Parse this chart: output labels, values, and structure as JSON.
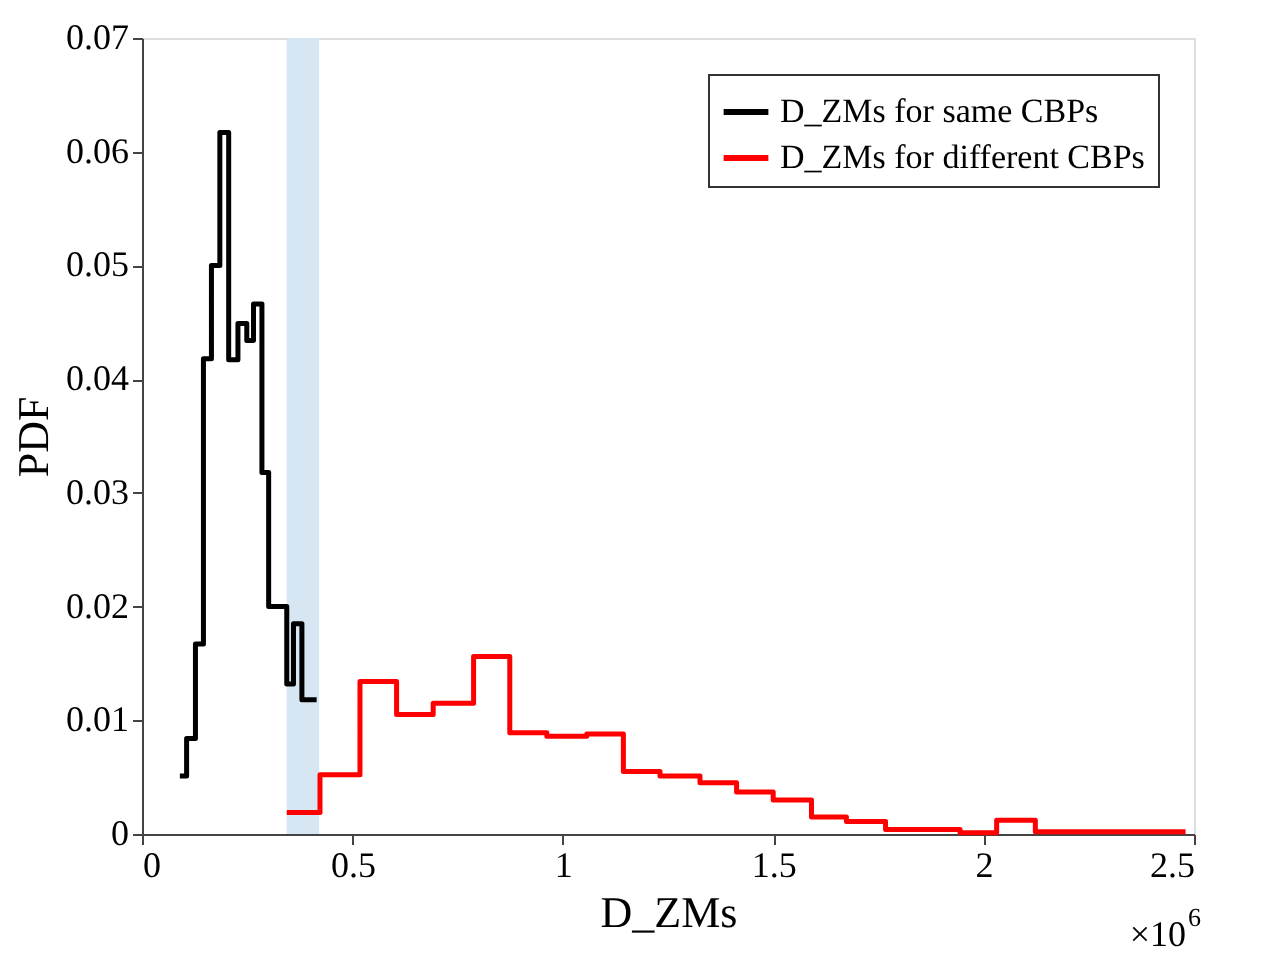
{
  "chart_data": {
    "type": "step",
    "xlabel": "D_ZMs",
    "ylabel": "PDF",
    "xlim": [
      0,
      2.5
    ],
    "xticks": [
      0,
      0.5,
      1,
      1.5,
      2,
      2.5
    ],
    "ylim": [
      0,
      0.07
    ],
    "yticks": [
      0,
      0.01,
      0.02,
      0.03,
      0.04,
      0.05,
      0.06,
      0.07
    ],
    "grid": false,
    "legend": "top right",
    "line_style": "solid",
    "marker": "none",
    "annotations": [
      "×10$^{6}$"
    ],
    "bands": [
      {
        "axis": "x",
        "from": 0.344,
        "to": 0.421,
        "color": "#d6e6f2"
      }
    ],
    "series": [
      {
        "name": "D_ZMs for same CBPs",
        "color": "#000000",
        "x": [
          0.09,
          0.106,
          0.127,
          0.146,
          0.165,
          0.185,
          0.206,
          0.228,
          0.249,
          0.265,
          0.285,
          0.301,
          0.344,
          0.36,
          0.38,
          0.415
        ],
        "values": [
          0.0051,
          0.0084,
          0.0167,
          0.0418,
          0.05,
          0.0617,
          0.0417,
          0.0449,
          0.0434,
          0.0466,
          0.0318,
          0.02,
          0.0132,
          0.0185,
          0.0118,
          0.0118
        ]
      },
      {
        "name": "D_ZMs for different CBPs",
        "color": "#ff0000",
        "x": [
          0.344,
          0.423,
          0.518,
          0.605,
          0.692,
          0.788,
          0.874,
          0.962,
          1.057,
          1.144,
          1.231,
          1.326,
          1.413,
          1.5,
          1.591,
          1.674,
          1.767,
          1.944,
          2.031,
          2.123,
          2.48
        ],
        "values": [
          0.0019,
          0.0052,
          0.0134,
          0.0105,
          0.0115,
          0.0156,
          0.0089,
          0.0086,
          0.0088,
          0.0055,
          0.0051,
          0.0045,
          0.0037,
          0.003,
          0.0015,
          0.0011,
          0.0004,
          0.0001,
          0.0012,
          0.0002,
          0.0002
        ]
      }
    ]
  }
}
